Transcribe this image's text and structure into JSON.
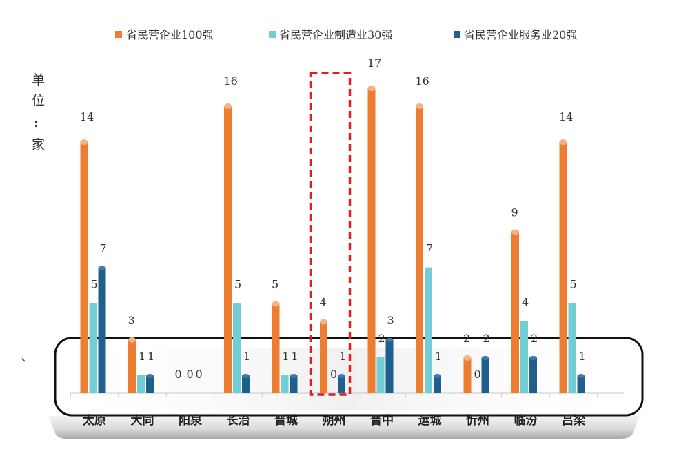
{
  "unit_label": [
    "单",
    "位",
    ":",
    "家"
  ],
  "stray_mark": "、",
  "chart_data": {
    "type": "bar",
    "title": "",
    "xlabel": "",
    "ylabel": "单位:家",
    "ylim": [
      0,
      18
    ],
    "grid": false,
    "legend_position": "top",
    "categories": [
      "太原",
      "大同",
      "阳泉",
      "长治",
      "晋城",
      "朔州",
      "晋中",
      "运城",
      "忻州",
      "临汾",
      "吕梁"
    ],
    "series": [
      {
        "name": "省民营企业100强",
        "color": "#ED7D31",
        "values": [
          14,
          3,
          0,
          16,
          5,
          4,
          17,
          16,
          2,
          9,
          14
        ]
      },
      {
        "name": "省民营企业制造业30强",
        "color": "#72CDD4",
        "values": [
          5,
          1,
          0,
          5,
          1,
          0,
          2,
          7,
          0,
          4,
          5
        ]
      },
      {
        "name": "省民营企业服务业20强",
        "color": "#1F5F8B",
        "values": [
          7,
          1,
          0,
          1,
          1,
          1,
          3,
          1,
          2,
          2,
          1
        ]
      }
    ],
    "highlight_category": "朔州",
    "highlight_color": "#E02020"
  }
}
